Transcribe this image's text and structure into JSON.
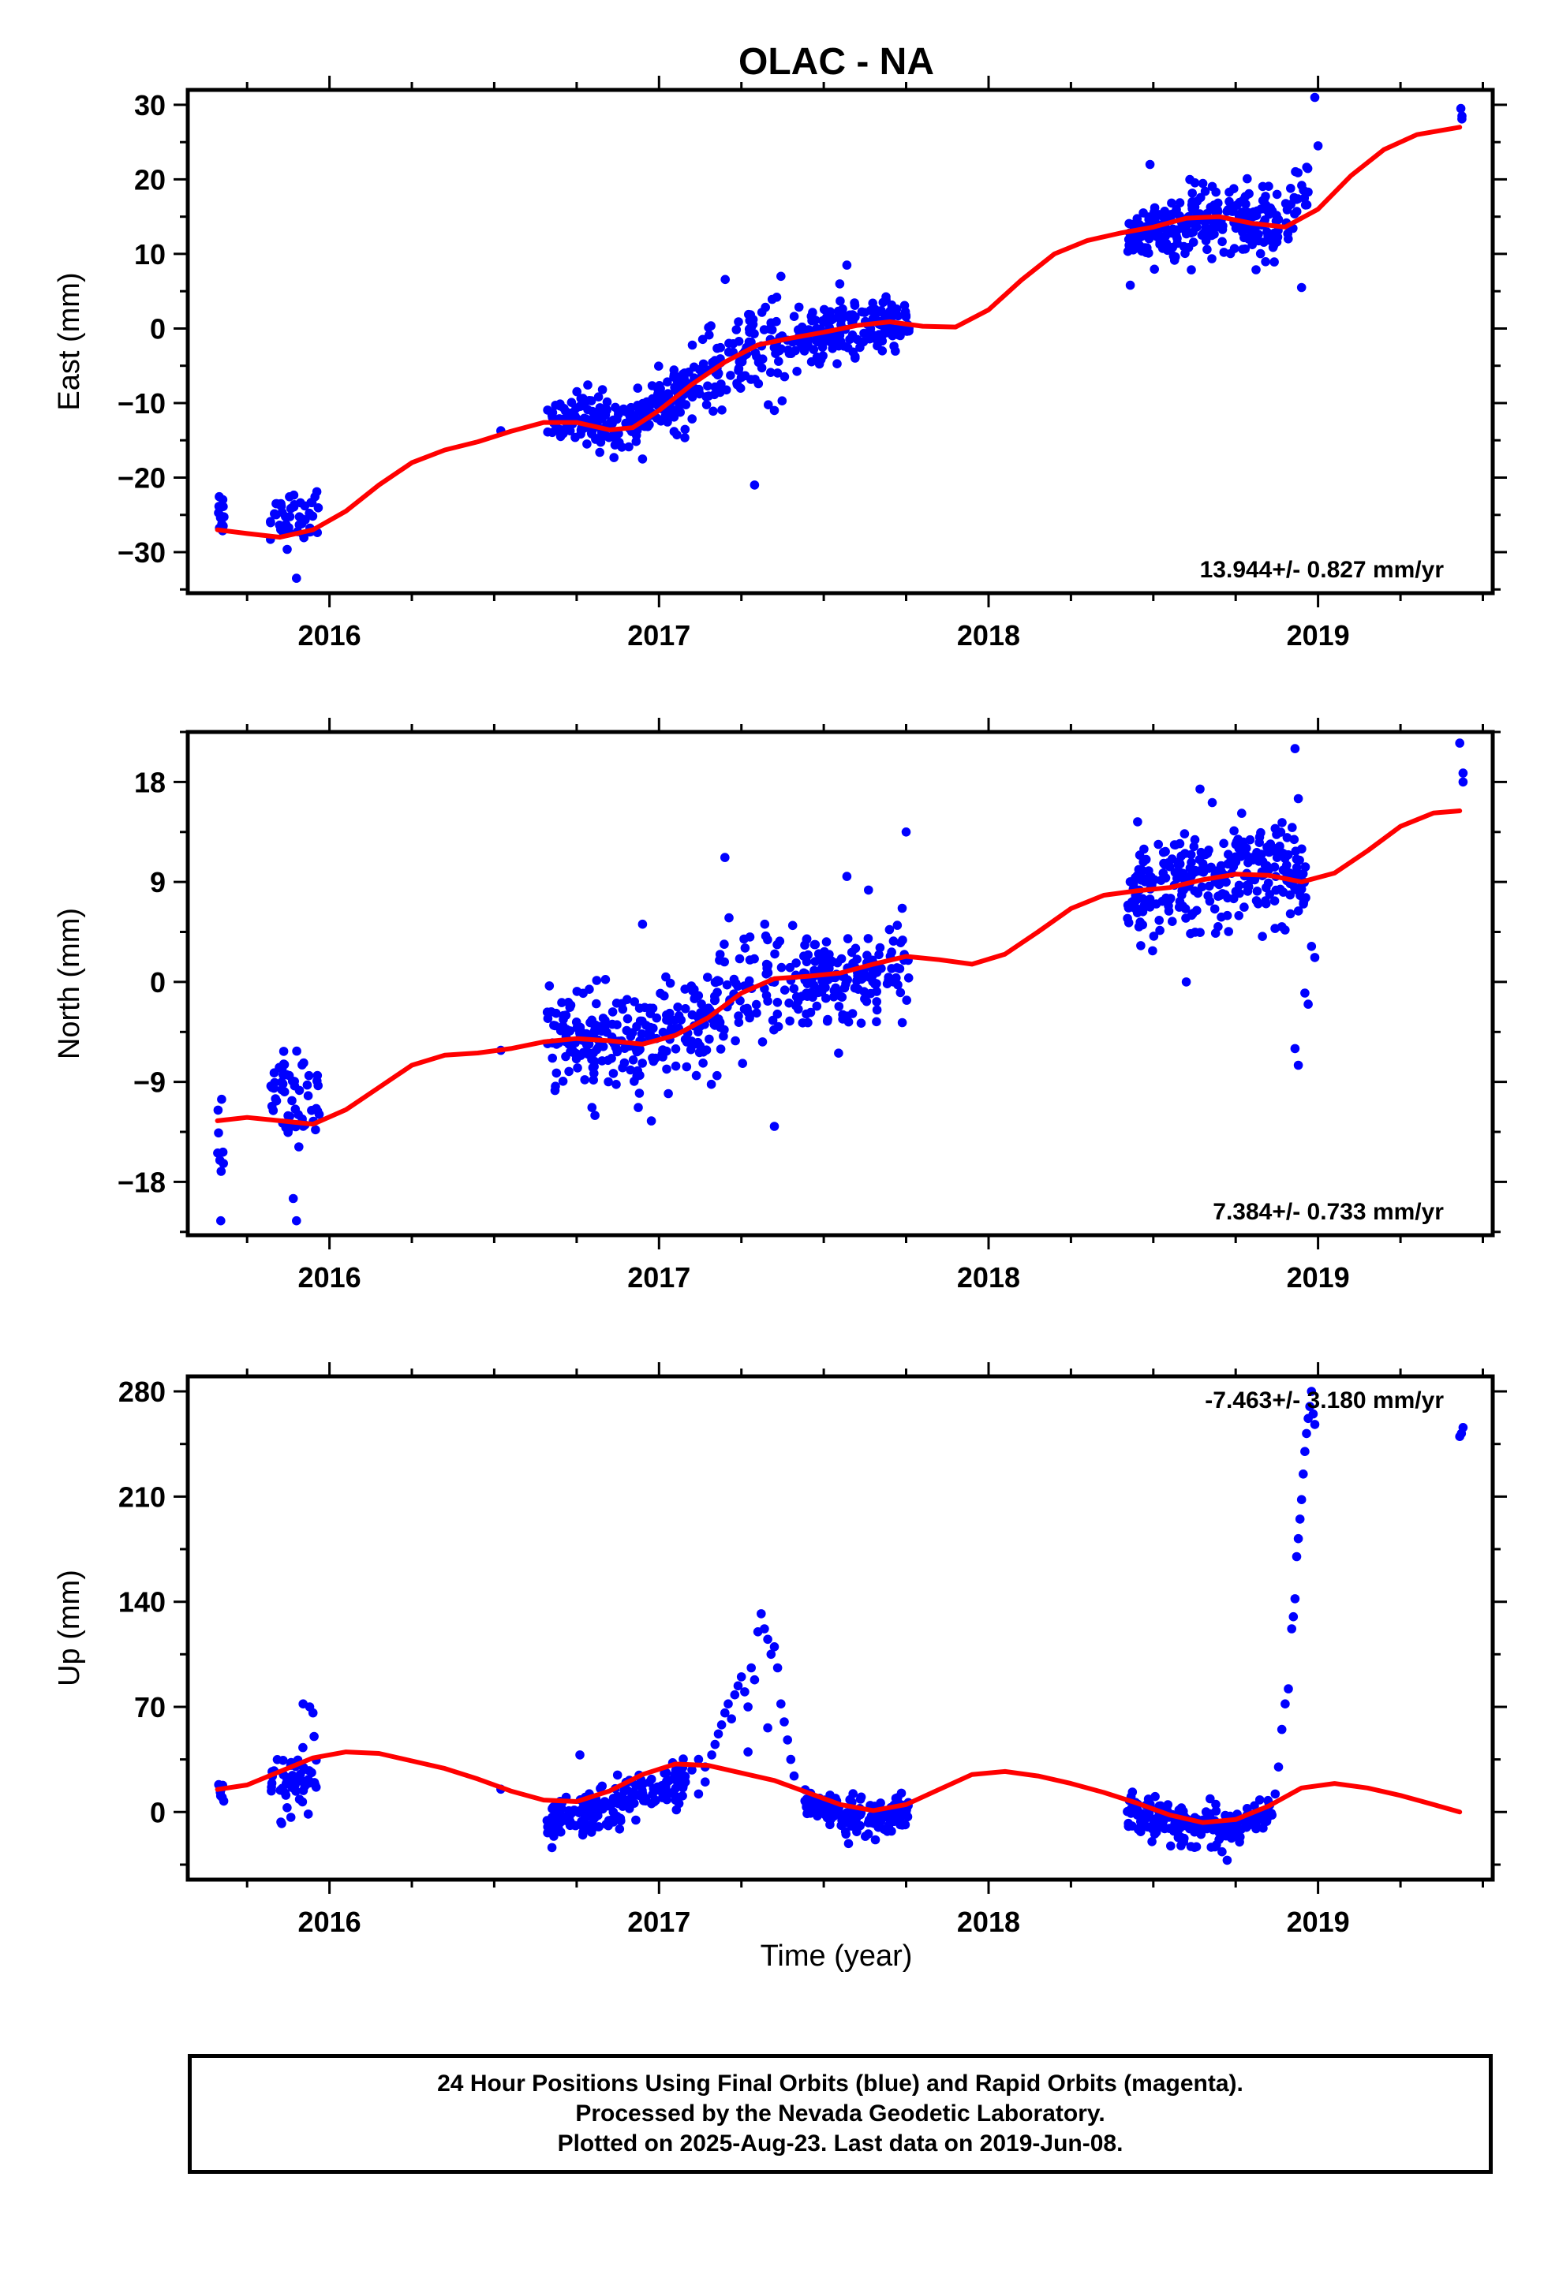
{
  "title": "OLAC - NA",
  "x_label": "Time (year)",
  "footer": {
    "line1": "24 Hour Positions Using Final Orbits (blue) and Rapid Orbits (magenta).",
    "line2": "Processed by the Nevada Geodetic Laboratory.",
    "line3": "Plotted on 2025-Aug-23. Last data on 2019-Jun-08."
  },
  "colors": {
    "points": "#0000ff",
    "fit": "#ff0000",
    "frame": "#000000"
  },
  "chart_data": [
    {
      "type": "scatter",
      "ylabel": "East (mm)",
      "rate_label": "13.944+/- 0.827 mm/yr",
      "xlim": [
        2015.57,
        2019.53
      ],
      "ylim": [
        -35.5,
        32
      ],
      "x_ticks": [
        2016,
        2017,
        2018,
        2019
      ],
      "y_ticks": [
        -30,
        -20,
        -10,
        0,
        10,
        20,
        30
      ],
      "fit": [
        [
          2015.66,
          -27
        ],
        [
          2015.75,
          -27.5
        ],
        [
          2015.85,
          -28
        ],
        [
          2015.95,
          -27
        ],
        [
          2016.05,
          -24.5
        ],
        [
          2016.15,
          -21
        ],
        [
          2016.25,
          -18
        ],
        [
          2016.35,
          -16.3
        ],
        [
          2016.45,
          -15.2
        ],
        [
          2016.55,
          -13.8
        ],
        [
          2016.65,
          -12.6
        ],
        [
          2016.75,
          -12.6
        ],
        [
          2016.85,
          -13.6
        ],
        [
          2016.92,
          -13.3
        ],
        [
          2017.0,
          -11
        ],
        [
          2017.1,
          -7.5
        ],
        [
          2017.2,
          -4.5
        ],
        [
          2017.3,
          -2.2
        ],
        [
          2017.4,
          -1.3
        ],
        [
          2017.5,
          -0.5
        ],
        [
          2017.6,
          0.4
        ],
        [
          2017.7,
          0.9
        ],
        [
          2017.8,
          0.3
        ],
        [
          2017.9,
          0.2
        ],
        [
          2018.0,
          2.5
        ],
        [
          2018.1,
          6.5
        ],
        [
          2018.2,
          10
        ],
        [
          2018.3,
          11.8
        ],
        [
          2018.4,
          12.8
        ],
        [
          2018.5,
          13.6
        ],
        [
          2018.6,
          14.8
        ],
        [
          2018.7,
          15
        ],
        [
          2018.8,
          14.1
        ],
        [
          2018.9,
          13.6
        ],
        [
          2019.0,
          16
        ],
        [
          2019.1,
          20.5
        ],
        [
          2019.2,
          24
        ],
        [
          2019.3,
          26
        ],
        [
          2019.43,
          27
        ]
      ],
      "segments": [
        {
          "x0": 2015.66,
          "x1": 2015.68,
          "n": 12,
          "ys": 2.5,
          "jit": 1.6
        },
        {
          "x0": 2015.82,
          "x1": 2015.97,
          "n": 45,
          "ys": 2.5,
          "jit": 1.8
        },
        {
          "x0": 2016.52,
          "x1": 2016.53,
          "n": 1,
          "ys": 0,
          "jit": 0.4
        },
        {
          "x0": 2016.66,
          "x1": 2017.04,
          "n": 180,
          "ys": 0.6,
          "jit": 1.8
        },
        {
          "x0": 2017.04,
          "x1": 2017.26,
          "n": 90,
          "ys": 0.4,
          "jit": 2.8
        },
        {
          "x0": 2017.26,
          "x1": 2017.44,
          "n": 70,
          "ys": 0.5,
          "jit": 2.6
        },
        {
          "x0": 2017.44,
          "x1": 2017.76,
          "n": 160,
          "ys": -0.5,
          "jit": 2.0
        },
        {
          "x0": 2018.42,
          "x1": 2018.66,
          "n": 130,
          "ys": -0.7,
          "jit": 2.2
        },
        {
          "x0": 2018.66,
          "x1": 2018.88,
          "n": 120,
          "ys": -0.6,
          "jit": 2.4
        },
        {
          "x0": 2018.9,
          "x1": 2018.97,
          "n": 25,
          "ys": 2.0,
          "jit": 2.8
        },
        {
          "x0": 2019.43,
          "x1": 2019.44,
          "n": 3,
          "ys": 1.4,
          "jit": 0.8
        }
      ],
      "outliers": [
        [
          2015.84,
          -23.5
        ],
        [
          2015.9,
          -33.5
        ],
        [
          2016.95,
          -17.5
        ],
        [
          2017.29,
          -21
        ],
        [
          2017.35,
          -11
        ],
        [
          2017.37,
          7
        ],
        [
          2017.57,
          8.5
        ],
        [
          2018.49,
          22
        ],
        [
          2018.43,
          5.8
        ],
        [
          2018.99,
          31
        ],
        [
          2019.0,
          24.5
        ],
        [
          2018.95,
          5.5
        ]
      ]
    },
    {
      "type": "scatter",
      "ylabel": "North (mm)",
      "rate_label": "7.384+/- 0.733 mm/yr",
      "xlim": [
        2015.57,
        2019.53
      ],
      "ylim": [
        -22.8,
        22.5
      ],
      "x_ticks": [
        2016,
        2017,
        2018,
        2019
      ],
      "y_ticks": [
        -18,
        -9,
        0,
        9,
        18
      ],
      "fit": [
        [
          2015.66,
          -12.5
        ],
        [
          2015.75,
          -12.2
        ],
        [
          2015.85,
          -12.5
        ],
        [
          2015.95,
          -12.8
        ],
        [
          2016.05,
          -11.5
        ],
        [
          2016.15,
          -9.5
        ],
        [
          2016.25,
          -7.5
        ],
        [
          2016.35,
          -6.6
        ],
        [
          2016.45,
          -6.4
        ],
        [
          2016.55,
          -6.0
        ],
        [
          2016.65,
          -5.4
        ],
        [
          2016.75,
          -5.1
        ],
        [
          2016.85,
          -5.3
        ],
        [
          2016.95,
          -5.6
        ],
        [
          2017.05,
          -4.8
        ],
        [
          2017.15,
          -3.2
        ],
        [
          2017.25,
          -1
        ],
        [
          2017.35,
          0.3
        ],
        [
          2017.45,
          0.5
        ],
        [
          2017.55,
          0.8
        ],
        [
          2017.65,
          1.6
        ],
        [
          2017.75,
          2.3
        ],
        [
          2017.85,
          2.0
        ],
        [
          2017.95,
          1.6
        ],
        [
          2018.05,
          2.5
        ],
        [
          2018.15,
          4.5
        ],
        [
          2018.25,
          6.6
        ],
        [
          2018.35,
          7.8
        ],
        [
          2018.45,
          8.2
        ],
        [
          2018.55,
          8.5
        ],
        [
          2018.65,
          9.2
        ],
        [
          2018.75,
          9.7
        ],
        [
          2018.85,
          9.6
        ],
        [
          2018.95,
          9.0
        ],
        [
          2019.05,
          9.8
        ],
        [
          2019.15,
          11.8
        ],
        [
          2019.25,
          14
        ],
        [
          2019.35,
          15.2
        ],
        [
          2019.43,
          15.4
        ]
      ],
      "segments": [
        {
          "x0": 2015.66,
          "x1": 2015.68,
          "n": 8,
          "ys": 0,
          "jit": 4.5
        },
        {
          "x0": 2015.82,
          "x1": 2015.97,
          "n": 55,
          "ys": 2.5,
          "jit": 2.2
        },
        {
          "x0": 2016.52,
          "x1": 2016.53,
          "n": 1,
          "ys": 0,
          "jit": 0.4
        },
        {
          "x0": 2016.66,
          "x1": 2017.2,
          "n": 260,
          "ys": 0.3,
          "jit": 2.2
        },
        {
          "x0": 2017.2,
          "x1": 2017.44,
          "n": 70,
          "ys": 0.3,
          "jit": 3.2
        },
        {
          "x0": 2017.44,
          "x1": 2017.76,
          "n": 150,
          "ys": -0.6,
          "jit": 2.1
        },
        {
          "x0": 2018.42,
          "x1": 2018.97,
          "n": 280,
          "ys": 0.2,
          "jit": 2.4
        }
      ],
      "outliers": [
        [
          2015.67,
          -21.5
        ],
        [
          2015.9,
          -21.5
        ],
        [
          2015.89,
          -19.5
        ],
        [
          2016.95,
          5.2
        ],
        [
          2017.2,
          11.2
        ],
        [
          2017.35,
          -13
        ],
        [
          2017.57,
          9.5
        ],
        [
          2017.75,
          13.5
        ],
        [
          2018.93,
          21
        ],
        [
          2018.94,
          16.5
        ],
        [
          2018.93,
          -6
        ],
        [
          2018.94,
          -7.5
        ],
        [
          2018.97,
          -2
        ],
        [
          2018.96,
          -1
        ],
        [
          2018.98,
          3.2
        ],
        [
          2018.99,
          2.2
        ],
        [
          2018.6,
          0
        ],
        [
          2019.43,
          21.5
        ],
        [
          2019.44,
          18.8
        ],
        [
          2019.44,
          18
        ]
      ]
    },
    {
      "type": "scatter",
      "ylabel": "Up (mm)",
      "rate_label": "-7.463+/- 3.180 mm/yr",
      "xlim": [
        2015.57,
        2019.53
      ],
      "ylim": [
        -45,
        290
      ],
      "x_ticks": [
        2016,
        2017,
        2018,
        2019
      ],
      "y_ticks": [
        0,
        70,
        140,
        210,
        280
      ],
      "fit": [
        [
          2015.66,
          15
        ],
        [
          2015.75,
          18
        ],
        [
          2015.85,
          27
        ],
        [
          2015.95,
          36
        ],
        [
          2016.05,
          40
        ],
        [
          2016.15,
          39
        ],
        [
          2016.25,
          34
        ],
        [
          2016.35,
          29
        ],
        [
          2016.45,
          22
        ],
        [
          2016.55,
          14
        ],
        [
          2016.65,
          8
        ],
        [
          2016.75,
          7
        ],
        [
          2016.85,
          14
        ],
        [
          2016.95,
          25
        ],
        [
          2017.05,
          32
        ],
        [
          2017.15,
          31
        ],
        [
          2017.25,
          26
        ],
        [
          2017.35,
          21
        ],
        [
          2017.45,
          13
        ],
        [
          2017.55,
          5
        ],
        [
          2017.65,
          1
        ],
        [
          2017.75,
          5
        ],
        [
          2017.85,
          15
        ],
        [
          2017.95,
          25
        ],
        [
          2018.05,
          27
        ],
        [
          2018.15,
          24
        ],
        [
          2018.25,
          19
        ],
        [
          2018.35,
          13
        ],
        [
          2018.45,
          6
        ],
        [
          2018.55,
          -2
        ],
        [
          2018.65,
          -7
        ],
        [
          2018.75,
          -5
        ],
        [
          2018.85,
          4
        ],
        [
          2018.95,
          16
        ],
        [
          2019.05,
          19
        ],
        [
          2019.15,
          16
        ],
        [
          2019.25,
          11
        ],
        [
          2019.35,
          5
        ],
        [
          2019.43,
          0
        ]
      ],
      "segments": [
        {
          "x0": 2015.66,
          "x1": 2015.68,
          "n": 10,
          "ys": 0,
          "jit": 4
        },
        {
          "x0": 2015.82,
          "x1": 2015.97,
          "n": 60,
          "ys": -12,
          "jit": 9
        },
        {
          "x0": 2016.52,
          "x1": 2016.53,
          "n": 1,
          "ys": 0,
          "jit": 1
        },
        {
          "x0": 2016.66,
          "x1": 2017.08,
          "n": 200,
          "ys": -12,
          "jit": 8
        },
        {
          "x0": 2017.44,
          "x1": 2017.76,
          "n": 160,
          "ys": -7,
          "jit": 6
        },
        {
          "x0": 2018.42,
          "x1": 2018.86,
          "n": 230,
          "ys": -5,
          "jit": 6.5
        }
      ],
      "outliers": [
        [
          2015.92,
          72
        ],
        [
          2015.94,
          70
        ],
        [
          2015.95,
          66
        ],
        [
          2016.76,
          38
        ],
        [
          2017.05,
          8
        ],
        [
          2017.08,
          20
        ],
        [
          2017.1,
          28
        ],
        [
          2017.12,
          35
        ],
        [
          2017.14,
          30
        ],
        [
          2017.16,
          38
        ],
        [
          2017.17,
          45
        ],
        [
          2017.18,
          52
        ],
        [
          2017.19,
          58
        ],
        [
          2017.2,
          66
        ],
        [
          2017.21,
          72
        ],
        [
          2017.22,
          62
        ],
        [
          2017.23,
          78
        ],
        [
          2017.24,
          84
        ],
        [
          2017.25,
          90
        ],
        [
          2017.26,
          80
        ],
        [
          2017.27,
          70
        ],
        [
          2017.28,
          96
        ],
        [
          2017.29,
          88
        ],
        [
          2017.3,
          120
        ],
        [
          2017.31,
          132
        ],
        [
          2017.32,
          122
        ],
        [
          2017.33,
          115
        ],
        [
          2017.34,
          105
        ],
        [
          2017.35,
          110
        ],
        [
          2017.36,
          96
        ],
        [
          2017.37,
          72
        ],
        [
          2017.38,
          60
        ],
        [
          2017.39,
          48
        ],
        [
          2017.4,
          35
        ],
        [
          2017.41,
          24
        ],
        [
          2017.12,
          12
        ],
        [
          2017.14,
          20
        ],
        [
          2017.27,
          40
        ],
        [
          2017.33,
          56
        ],
        [
          2018.86,
          -2
        ],
        [
          2018.87,
          12
        ],
        [
          2018.88,
          30
        ],
        [
          2018.89,
          55
        ],
        [
          2018.9,
          72
        ],
        [
          2018.91,
          82
        ],
        [
          2018.92,
          122
        ],
        [
          2018.925,
          130
        ],
        [
          2018.93,
          142
        ],
        [
          2018.935,
          170
        ],
        [
          2018.94,
          182
        ],
        [
          2018.945,
          195
        ],
        [
          2018.95,
          208
        ],
        [
          2018.955,
          225
        ],
        [
          2018.96,
          240
        ],
        [
          2018.965,
          252
        ],
        [
          2018.97,
          262
        ],
        [
          2018.975,
          270
        ],
        [
          2018.98,
          280
        ],
        [
          2018.985,
          265
        ],
        [
          2018.99,
          258
        ],
        [
          2019.43,
          250
        ],
        [
          2019.44,
          256
        ],
        [
          2019.435,
          252
        ]
      ]
    }
  ]
}
